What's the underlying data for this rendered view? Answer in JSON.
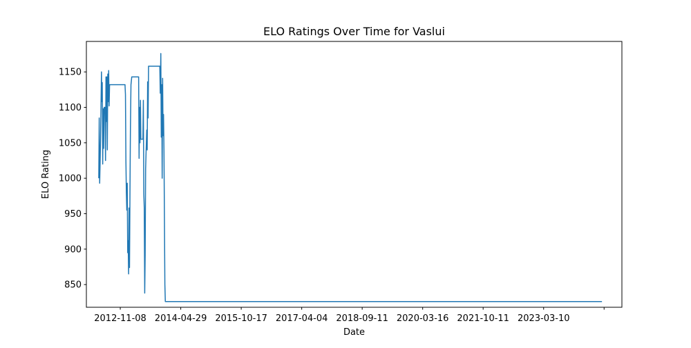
{
  "chart_data": {
    "type": "line",
    "title": "ELO Ratings Over Time for Vaslui",
    "xlabel": "Date",
    "ylabel": "ELO Rating",
    "x_tick_labels": [
      "2012-11-08",
      "2014-04-29",
      "2015-10-17",
      "2017-04-04",
      "2018-09-11",
      "2020-03-16",
      "2021-10-11",
      "2023-03-10",
      ""
    ],
    "y_ticks": [
      850,
      900,
      950,
      1000,
      1050,
      1100,
      1150
    ],
    "xlim": [
      "2012-01-12",
      "2025-01-18"
    ],
    "ylim": [
      818,
      1193
    ],
    "grid": false,
    "series": [
      {
        "color": "#1f77b4",
        "points": [
          [
            "2012-05-01",
            1000
          ],
          [
            "2012-05-05",
            1085
          ],
          [
            "2012-05-09",
            993
          ],
          [
            "2012-05-13",
            1022
          ],
          [
            "2012-05-17",
            1056
          ],
          [
            "2012-05-25",
            1150
          ],
          [
            "2012-05-28",
            1108
          ],
          [
            "2012-06-01",
            1135
          ],
          [
            "2012-06-05",
            1020
          ],
          [
            "2012-06-09",
            1098
          ],
          [
            "2012-06-13",
            1042
          ],
          [
            "2012-06-18",
            1100
          ],
          [
            "2012-06-26",
            1100
          ],
          [
            "2012-06-30",
            1025
          ],
          [
            "2012-07-04",
            1143
          ],
          [
            "2012-07-08",
            1080
          ],
          [
            "2012-07-12",
            1143
          ],
          [
            "2012-07-16",
            1040
          ],
          [
            "2012-07-20",
            1147
          ],
          [
            "2012-07-24",
            1108
          ],
          [
            "2012-07-28",
            1152
          ],
          [
            "2012-08-01",
            1102
          ],
          [
            "2012-08-05",
            1132
          ],
          [
            "2012-10-15",
            1132
          ],
          [
            "2012-12-20",
            1132
          ],
          [
            "2012-12-24",
            1118
          ],
          [
            "2012-12-28",
            1025
          ],
          [
            "2013-01-01",
            980
          ],
          [
            "2013-01-05",
            955
          ],
          [
            "2013-01-09",
            993
          ],
          [
            "2013-01-13",
            895
          ],
          [
            "2013-01-17",
            912
          ],
          [
            "2013-01-21",
            865
          ],
          [
            "2013-01-25",
            958
          ],
          [
            "2013-01-29",
            874
          ],
          [
            "2013-02-02",
            980
          ],
          [
            "2013-02-06",
            1068
          ],
          [
            "2013-02-11",
            1132
          ],
          [
            "2013-02-18",
            1143
          ],
          [
            "2013-04-20",
            1143
          ],
          [
            "2013-04-24",
            1028
          ],
          [
            "2013-04-28",
            1100
          ],
          [
            "2013-05-02",
            1050
          ],
          [
            "2013-05-06",
            1110
          ],
          [
            "2013-05-10",
            1055
          ],
          [
            "2013-05-28",
            1055
          ],
          [
            "2013-06-01",
            1110
          ],
          [
            "2013-06-05",
            978
          ],
          [
            "2013-06-09",
            958
          ],
          [
            "2013-06-13",
            838
          ],
          [
            "2013-06-17",
            892
          ],
          [
            "2013-06-21",
            1013
          ],
          [
            "2013-06-25",
            1036
          ],
          [
            "2013-07-01",
            1068
          ],
          [
            "2013-07-05",
            1040
          ],
          [
            "2013-07-09",
            1136
          ],
          [
            "2013-07-13",
            1085
          ],
          [
            "2013-07-17",
            1158
          ],
          [
            "2013-10-25",
            1158
          ],
          [
            "2013-10-29",
            1120
          ],
          [
            "2013-11-03",
            1176
          ],
          [
            "2013-11-07",
            1058
          ],
          [
            "2013-11-11",
            1132
          ],
          [
            "2013-11-15",
            1000
          ],
          [
            "2013-11-19",
            1141
          ],
          [
            "2013-11-23",
            1060
          ],
          [
            "2013-11-27",
            1090
          ],
          [
            "2013-12-01",
            1040
          ],
          [
            "2013-12-05",
            945
          ],
          [
            "2013-12-09",
            850
          ],
          [
            "2013-12-13",
            826
          ],
          [
            "2024-07-25",
            826
          ]
        ]
      }
    ]
  }
}
